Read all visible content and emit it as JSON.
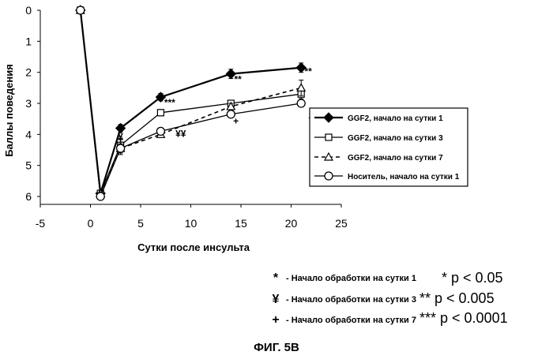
{
  "chart_data": {
    "type": "line",
    "title": "",
    "xlabel": "Сутки после инсульта",
    "ylabel": "Баллы поведения",
    "xlim": [
      -5,
      25
    ],
    "ylim": [
      0,
      6
    ],
    "y_inverted": true,
    "x_ticks": [
      "-5",
      "0",
      "5",
      "10",
      "15",
      "20",
      "25"
    ],
    "y_ticks": [
      "0",
      "1",
      "2",
      "3",
      "4",
      "5",
      "6"
    ],
    "grid": false,
    "legend_position": "right",
    "series": [
      {
        "name": "GGF2, начало на сутки 1",
        "marker": "filled-diamond",
        "line": "solid-bold",
        "x": [
          -1,
          1,
          3,
          7,
          14,
          21
        ],
        "y": [
          0,
          5.9,
          3.8,
          2.8,
          2.05,
          1.85
        ],
        "err": [
          0,
          0.1,
          0.12,
          0.12,
          0.15,
          0.15
        ]
      },
      {
        "name": "GGF2, начало на сутки 3",
        "marker": "open-square",
        "line": "solid",
        "x": [
          -1,
          1,
          3,
          7,
          14,
          21
        ],
        "y": [
          0,
          5.9,
          4.35,
          3.3,
          3.0,
          2.7
        ],
        "err": [
          0,
          0.1,
          0.2,
          0.1,
          0.1,
          0.15
        ]
      },
      {
        "name": "GGF2, начало на сутки 7",
        "marker": "open-triangle",
        "line": "dashed",
        "x": [
          -1,
          1,
          3,
          7,
          14,
          21
        ],
        "y": [
          0,
          5.9,
          4.45,
          4.0,
          3.1,
          2.5
        ],
        "err": [
          0,
          0.1,
          0.15,
          0.1,
          0.1,
          0.25
        ]
      },
      {
        "name": "Носитель, начало на сутки 1",
        "marker": "open-circle",
        "line": "solid",
        "x": [
          -1,
          1,
          3,
          7,
          14,
          21
        ],
        "y": [
          0,
          6.0,
          4.45,
          3.9,
          3.35,
          3.0
        ],
        "err": [
          0,
          0.1,
          0.2,
          0.1,
          0.1,
          0.1
        ]
      }
    ],
    "annotations": [
      {
        "text": "*",
        "x": 3,
        "y": 3.95
      },
      {
        "text": "¥",
        "x": 3,
        "y": 4.05
      },
      {
        "text": "+",
        "x": 3,
        "y": 4.15
      },
      {
        "text": "***",
        "x": 7.9,
        "y": 2.95
      },
      {
        "text": "¥¥",
        "x": 9,
        "y": 3.95
      },
      {
        "text": "**",
        "x": 14.7,
        "y": 2.2
      },
      {
        "text": "+",
        "x": 14.5,
        "y": 3.55
      },
      {
        "text": "**",
        "x": 21.7,
        "y": 1.95
      },
      {
        "text": "+",
        "x": 22,
        "y": 3.45
      }
    ]
  },
  "notes": [
    {
      "symbol": "*",
      "text": "Начало обработки на сутки 1"
    },
    {
      "symbol": "¥",
      "text": "Начало обработки на сутки 3"
    },
    {
      "symbol": "+",
      "text": "Начало обработки на сутки 7"
    }
  ],
  "pvalues": [
    "* p < 0.05",
    "** p < 0.005",
    "*** p < 0.0001"
  ],
  "figure_caption": "ФИГ. 5В"
}
